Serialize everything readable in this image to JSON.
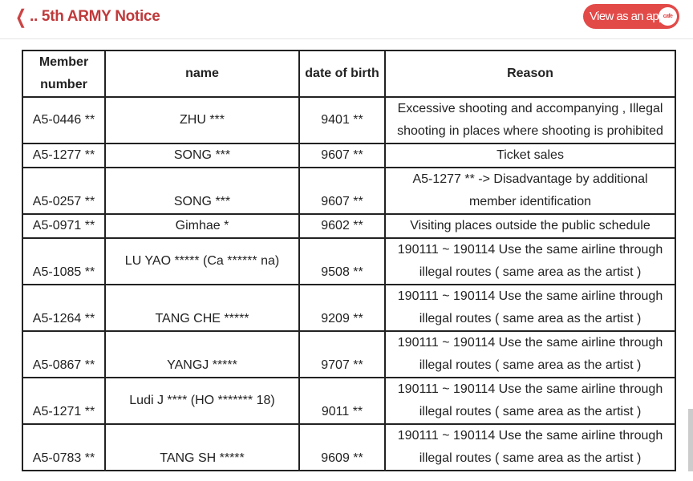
{
  "header": {
    "back_icon": "chevron-left-icon",
    "title": ".. 5th ARMY Notice",
    "app_button": "View as an app",
    "cafe_badge": "cafe"
  },
  "table": {
    "columns": [
      "Member number",
      "name",
      "date of birth",
      "Reason"
    ],
    "rows": [
      {
        "member": "A5-0446 **",
        "name": "ZHU ***",
        "dob": "9401 **",
        "reason": "Excessive shooting and accompanying , Illegal shooting in places where shooting is prohibited"
      },
      {
        "member": "A5-1277 **",
        "name": "SONG ***",
        "dob": "9607 **",
        "reason": "Ticket sales"
      },
      {
        "member": "A5-0257 **",
        "name": "SONG ***",
        "dob": "9607 **",
        "reason": "A5-1277 ** -> Disadvantage by additional member identification"
      },
      {
        "member": "A5-0971 **",
        "name": "Gimhae *",
        "dob": "9602 **",
        "reason": "Visiting places outside the public schedule"
      },
      {
        "member": "A5-1085 **",
        "name": "LU YAO ***** (Ca ****** na)",
        "dob": "9508 **",
        "reason": "190111 ~ 190114 Use the same airline through illegal routes ( same area as the artist )"
      },
      {
        "member": "A5-1264 **",
        "name": "TANG CHE *****",
        "dob": "9209 **",
        "reason": "190111 ~ 190114 Use the same airline through illegal routes ( same area as the artist )"
      },
      {
        "member": "A5-0867 **",
        "name": "YANGJ *****",
        "dob": "9707 **",
        "reason": "190111 ~ 190114 Use the same airline through illegal routes ( same area as the artist )"
      },
      {
        "member": "A5-1271 **",
        "name": "Ludi J **** (HO ******* 18)",
        "dob": "9011 **",
        "reason": "190111 ~ 190114 Use the same airline through illegal routes ( same area as the artist )"
      },
      {
        "member": "A5-0783 **",
        "name": "TANG SH *****",
        "dob": "9609 **",
        "reason": "190111 ~ 190114 Use the same airline through illegal routes ( same area as the artist )"
      }
    ]
  }
}
